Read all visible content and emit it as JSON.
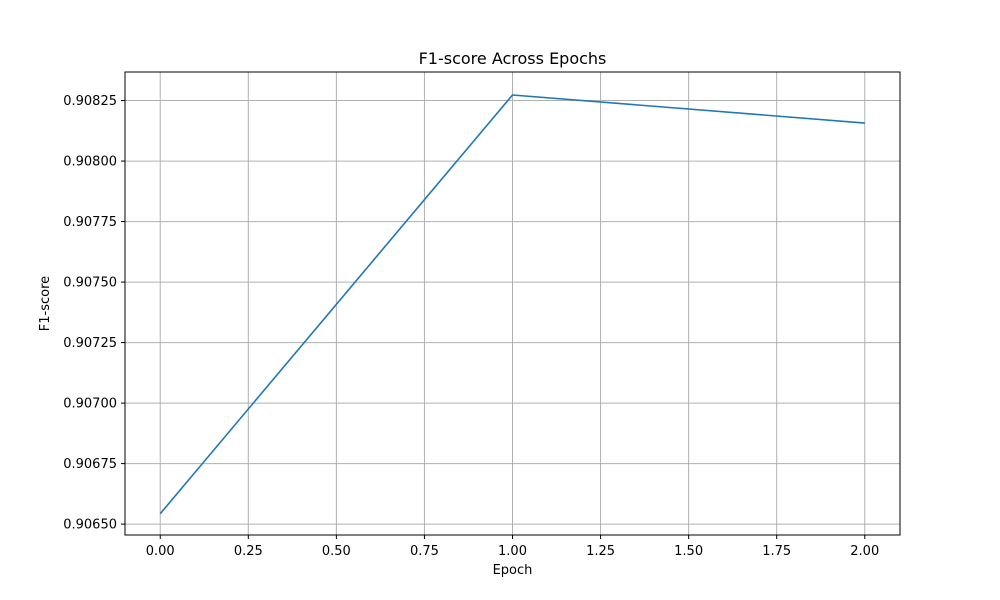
{
  "chart_data": {
    "type": "line",
    "title": "F1-score Across Epochs",
    "xlabel": "Epoch",
    "ylabel": "F1-score",
    "xlim": [
      -0.1,
      2.1
    ],
    "ylim": [
      0.906455,
      0.908368
    ],
    "x_ticks": [
      0.0,
      0.25,
      0.5,
      0.75,
      1.0,
      1.25,
      1.5,
      1.75,
      2.0
    ],
    "x_tick_labels": [
      "0.00",
      "0.25",
      "0.50",
      "0.75",
      "1.00",
      "1.25",
      "1.50",
      "1.75",
      "2.00"
    ],
    "y_ticks": [
      0.9065,
      0.90675,
      0.907,
      0.90725,
      0.9075,
      0.90775,
      0.908,
      0.90825
    ],
    "y_tick_labels": [
      "0.90650",
      "0.90675",
      "0.90700",
      "0.90725",
      "0.90750",
      "0.90775",
      "0.90800",
      "0.90825"
    ],
    "grid": true,
    "legend": false,
    "line_color": "#1f77b4",
    "series": [
      {
        "x": [
          0,
          1,
          2
        ],
        "values": [
          0.906543,
          0.908273,
          0.908157
        ]
      }
    ]
  }
}
